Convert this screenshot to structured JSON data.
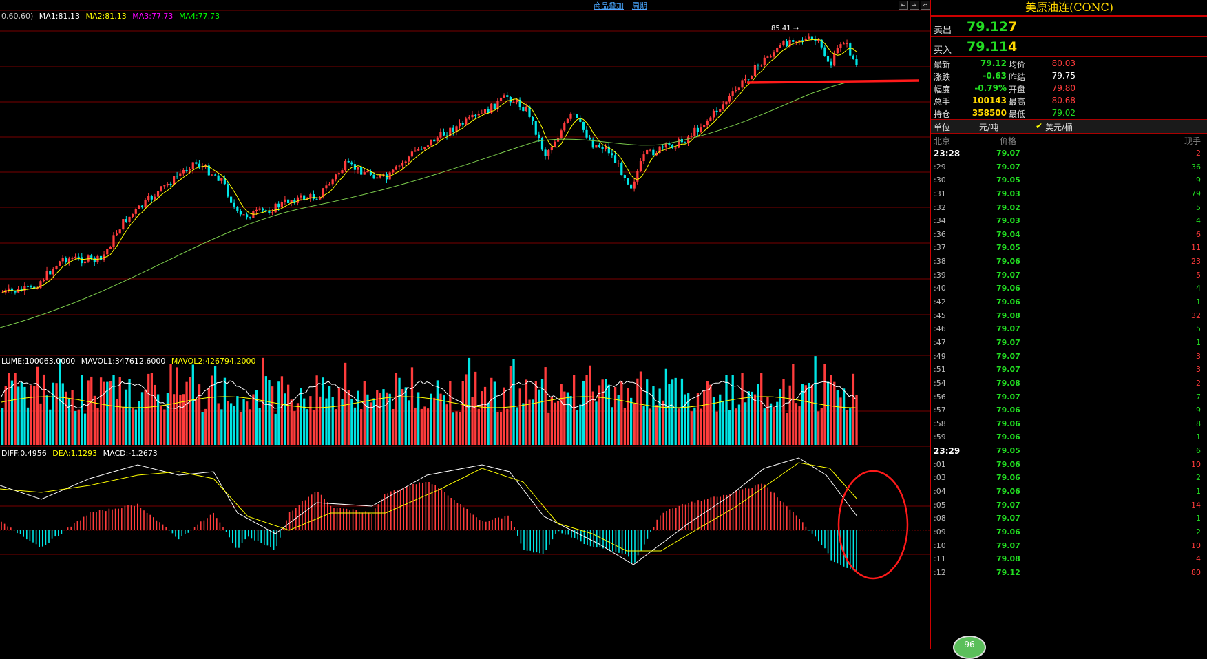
{
  "toolbar": {
    "overlay_label": "商品叠加",
    "period_label": "周期"
  },
  "price_legend": {
    "prefix": "0,60,60)",
    "ma1": "MA1:81.13",
    "ma2": "MA2:81.13",
    "ma3": "MA3:77.73",
    "ma4": "MA4:77.73",
    "colors": {
      "ma1": "#ffffff",
      "ma2": "#ffff00",
      "ma3": "#ff00ff",
      "ma4": "#00ff00"
    }
  },
  "high_marker": "85.41",
  "volume_legend": {
    "vol": "LUME:100063.0000",
    "mavol1": "MAVOL1:347612.6000",
    "mavol2": "MAVOL2:426794.2000"
  },
  "macd_legend": {
    "diff": "DIFF:0.4956",
    "dea": "DEA:1.1293",
    "macd": "MACD:-1.2673"
  },
  "panel": {
    "title": "美原油连(CONC)",
    "ask": {
      "label": "卖出",
      "price": "79.12",
      "volume": "7"
    },
    "bid": {
      "label": "买入",
      "price": "79.11",
      "volume": "4"
    },
    "stats": [
      {
        "l1": "最新",
        "v1": "79.12",
        "c1": "dn",
        "l2": "均价",
        "v2": "80.03",
        "c2": "up"
      },
      {
        "l1": "涨跌",
        "v1": "-0.63",
        "c1": "dn",
        "l2": "昨结",
        "v2": "79.75",
        "c2": "wh"
      },
      {
        "l1": "幅度",
        "v1": "-0.79%",
        "c1": "dn",
        "l2": "开盘",
        "v2": "79.80",
        "c2": "up"
      },
      {
        "l1": "总手",
        "v1": "100143",
        "c1": "yl",
        "l2": "最高",
        "v2": "80.68",
        "c2": "up"
      },
      {
        "l1": "持仓",
        "v1": "358500",
        "c1": "yl",
        "l2": "最低",
        "v2": "79.02",
        "c2": "dn"
      }
    ],
    "unit": {
      "label": "单位",
      "unit1": "元/吨",
      "unit2": "美元/桶"
    },
    "tick_head": {
      "time": "北京",
      "price": "价格",
      "vol": "现手"
    },
    "ticks": [
      {
        "t": "23:28",
        "p": "79.07",
        "v": "2",
        "c": "up",
        "full": true
      },
      {
        "t": ":29",
        "p": "79.07",
        "v": "36",
        "c": "dn"
      },
      {
        "t": ":30",
        "p": "79.05",
        "v": "9",
        "c": "dn"
      },
      {
        "t": ":31",
        "p": "79.03",
        "v": "79",
        "c": "dn"
      },
      {
        "t": ":32",
        "p": "79.02",
        "v": "5",
        "c": "dn"
      },
      {
        "t": ":34",
        "p": "79.03",
        "v": "4",
        "c": "dn"
      },
      {
        "t": ":36",
        "p": "79.04",
        "v": "6",
        "c": "up"
      },
      {
        "t": ":37",
        "p": "79.05",
        "v": "11",
        "c": "up"
      },
      {
        "t": ":38",
        "p": "79.06",
        "v": "23",
        "c": "up"
      },
      {
        "t": ":39",
        "p": "79.07",
        "v": "5",
        "c": "up"
      },
      {
        "t": ":40",
        "p": "79.06",
        "v": "4",
        "c": "dn"
      },
      {
        "t": ":42",
        "p": "79.06",
        "v": "1",
        "c": "dn"
      },
      {
        "t": ":45",
        "p": "79.08",
        "v": "32",
        "c": "up"
      },
      {
        "t": ":46",
        "p": "79.07",
        "v": "5",
        "c": "dn"
      },
      {
        "t": ":47",
        "p": "79.07",
        "v": "1",
        "c": "dn"
      },
      {
        "t": ":49",
        "p": "79.07",
        "v": "3",
        "c": "up"
      },
      {
        "t": ":51",
        "p": "79.07",
        "v": "3",
        "c": "up"
      },
      {
        "t": ":54",
        "p": "79.08",
        "v": "2",
        "c": "up"
      },
      {
        "t": ":56",
        "p": "79.07",
        "v": "7",
        "c": "dn"
      },
      {
        "t": ":57",
        "p": "79.06",
        "v": "9",
        "c": "dn"
      },
      {
        "t": ":58",
        "p": "79.06",
        "v": "8",
        "c": "dn"
      },
      {
        "t": ":59",
        "p": "79.06",
        "v": "1",
        "c": "dn"
      },
      {
        "t": "23:29",
        "p": "79.05",
        "v": "6",
        "c": "dn",
        "full": true
      },
      {
        "t": ":01",
        "p": "79.06",
        "v": "10",
        "c": "up"
      },
      {
        "t": ":03",
        "p": "79.06",
        "v": "2",
        "c": "dn"
      },
      {
        "t": ":04",
        "p": "79.06",
        "v": "1",
        "c": "dn"
      },
      {
        "t": ":05",
        "p": "79.07",
        "v": "14",
        "c": "up"
      },
      {
        "t": ":08",
        "p": "79.07",
        "v": "1",
        "c": "dn"
      },
      {
        "t": ":09",
        "p": "79.06",
        "v": "2",
        "c": "dn"
      },
      {
        "t": ":10",
        "p": "79.07",
        "v": "10",
        "c": "up"
      },
      {
        "t": ":11",
        "p": "79.08",
        "v": "4",
        "c": "up"
      },
      {
        "t": ":12",
        "p": "79.12",
        "v": "80",
        "c": "up"
      }
    ],
    "badge": "96"
  },
  "colors": {
    "up": "#ff3c3c",
    "down": "#00e5e5",
    "grid": "#7a0000"
  }
}
